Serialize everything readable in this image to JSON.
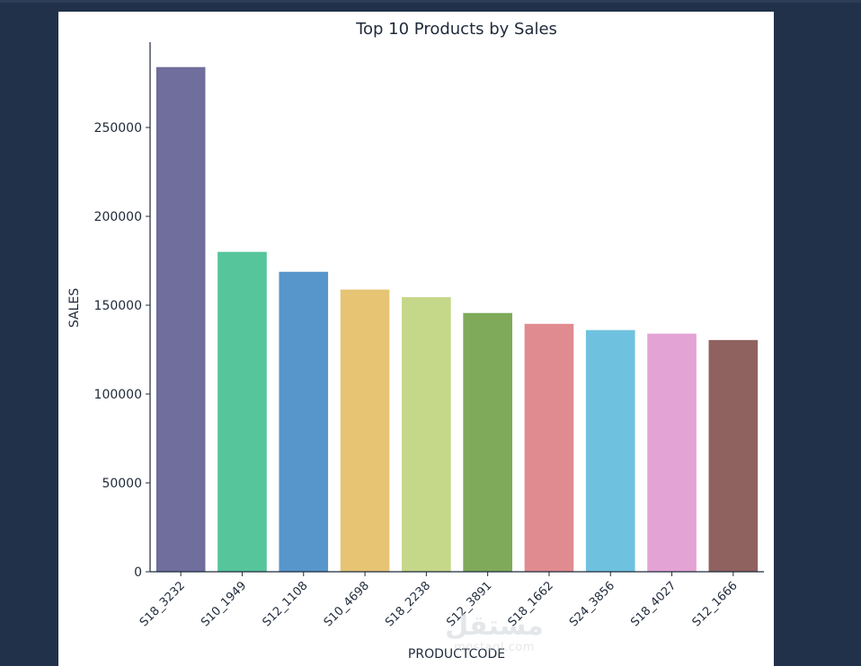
{
  "chart_data": {
    "type": "bar",
    "title": "Top 10 Products by Sales",
    "xlabel": "PRODUCTCODE",
    "ylabel": "SALES",
    "categories": [
      "S18_3232",
      "S10_1949",
      "S12_1108",
      "S10_4698",
      "S18_2238",
      "S12_3891",
      "S18_1662",
      "S24_3856",
      "S18_4027",
      "S12_1666"
    ],
    "values": [
      284000,
      180000,
      168800,
      158800,
      154500,
      145600,
      139500,
      136000,
      134000,
      130400
    ],
    "colors": [
      "#6f6e9c",
      "#56c59b",
      "#5696cb",
      "#e6c474",
      "#c5d788",
      "#7faa5a",
      "#e08b8f",
      "#6fc2df",
      "#e4a3d5",
      "#8f625f"
    ],
    "ylim": [
      0,
      298000
    ],
    "yticks": [
      0,
      50000,
      100000,
      150000,
      200000,
      250000
    ],
    "grid": false
  },
  "watermark": {
    "arabic": "مستقل",
    "latin": "mostaql.com"
  }
}
